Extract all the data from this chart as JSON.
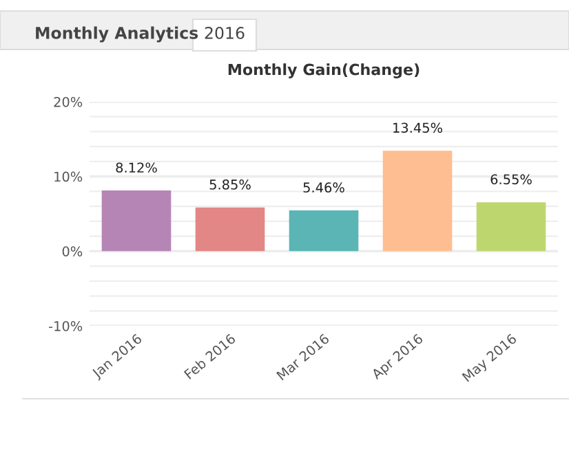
{
  "chart_data": {
    "type": "bar",
    "title": "Monthly Gain(Change)",
    "annotations": [
      "Monthly Analytics",
      "2016"
    ],
    "categories": [
      "Jan 2016",
      "Feb 2016",
      "Mar 2016",
      "Apr 2016",
      "May 2016"
    ],
    "values": [
      8.12,
      5.85,
      5.46,
      13.45,
      6.55
    ],
    "colors": [
      "#b586b5",
      "#e28785",
      "#5bb5b5",
      "#ffbe91",
      "#bdd76e"
    ],
    "value_labels": [
      "8.12%",
      "5.85%",
      "5.46%",
      "13.45%",
      "6.55%"
    ],
    "ylim": [
      -10,
      20
    ],
    "yticks": [
      {
        "value": -10,
        "label": "-10%"
      },
      {
        "value": -8,
        "label": null
      },
      {
        "value": -6,
        "label": null
      },
      {
        "value": -4,
        "label": null
      },
      {
        "value": -2,
        "label": null
      },
      {
        "value": 0,
        "label": "0%"
      },
      {
        "value": 2,
        "label": null
      },
      {
        "value": 4,
        "label": null
      },
      {
        "value": 6,
        "label": null
      },
      {
        "value": 8,
        "label": null
      },
      {
        "value": 10,
        "label": "10%"
      },
      {
        "value": 12,
        "label": null
      },
      {
        "value": 14,
        "label": null
      },
      {
        "value": 16,
        "label": null
      },
      {
        "value": 18,
        "label": null
      },
      {
        "value": 20,
        "label": "20%"
      }
    ],
    "grid": "y",
    "legend": false
  }
}
